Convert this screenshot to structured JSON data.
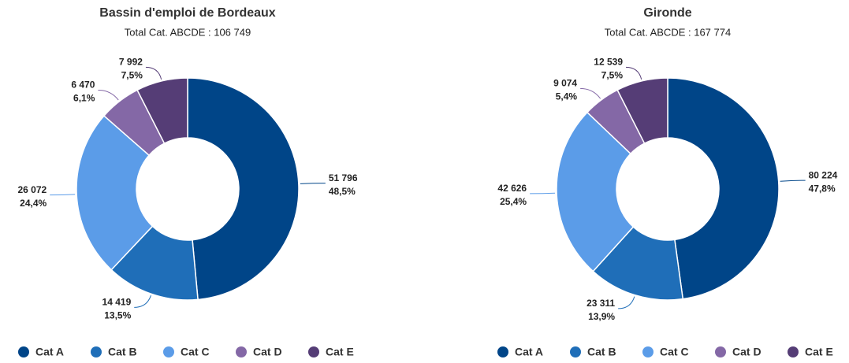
{
  "chart_data": [
    {
      "type": "donut",
      "title": "Bassin d'emploi de Bordeaux",
      "subtitle": "Total Cat. ABCDE : 106 749",
      "categories": [
        "Cat A",
        "Cat B",
        "Cat C",
        "Cat D",
        "Cat E"
      ],
      "colors": [
        "#004588",
        "#1f6eb8",
        "#5b9ce8",
        "#8468a6",
        "#553d76"
      ],
      "values": [
        51796,
        14419,
        26072,
        6470,
        7992
      ],
      "value_labels": [
        "51 796",
        "14 419",
        "26 072",
        "6 470",
        "7 992"
      ],
      "percentages": [
        48.5,
        13.5,
        24.4,
        6.1,
        7.5
      ],
      "percentage_labels": [
        "48,5%",
        "13,5%",
        "24,4%",
        "6,1%",
        "7,5%"
      ]
    },
    {
      "type": "donut",
      "title": "Gironde",
      "subtitle": "Total Cat. ABCDE : 167 774",
      "categories": [
        "Cat A",
        "Cat B",
        "Cat C",
        "Cat D",
        "Cat E"
      ],
      "colors": [
        "#004588",
        "#1f6eb8",
        "#5b9ce8",
        "#8468a6",
        "#553d76"
      ],
      "values": [
        80224,
        23311,
        42626,
        9074,
        12539
      ],
      "value_labels": [
        "80 224",
        "23 311",
        "42 626",
        "9 074",
        "12 539"
      ],
      "percentages": [
        47.8,
        13.9,
        25.4,
        5.4,
        7.5
      ],
      "percentage_labels": [
        "47,8%",
        "13,9%",
        "25,4%",
        "5,4%",
        "7,5%"
      ]
    }
  ]
}
